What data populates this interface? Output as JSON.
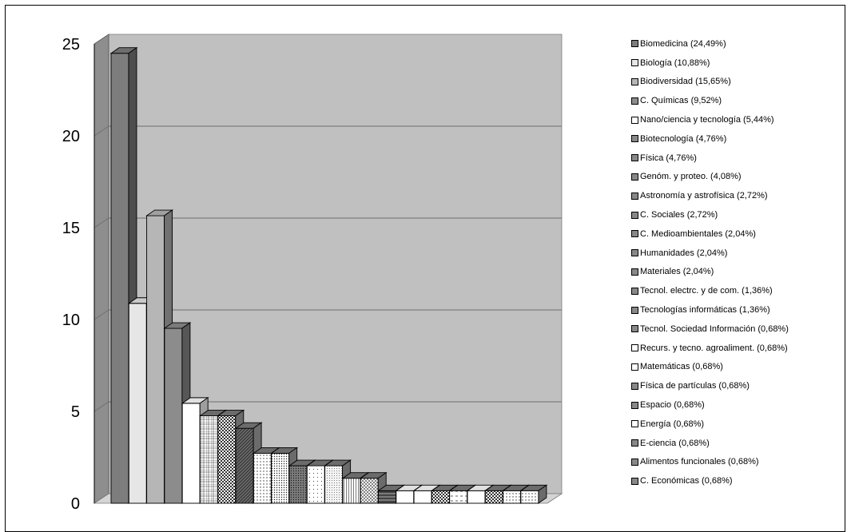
{
  "chart_data": {
    "type": "bar",
    "three_d": true,
    "ylim": [
      0,
      25
    ],
    "yticks": [
      "0",
      "5",
      "10",
      "15",
      "20",
      "25"
    ],
    "grid": true,
    "legend_position": "right",
    "title": "",
    "xlabel": "",
    "ylabel": "",
    "categories": [
      "Biomedicina (24,49%)",
      "Biología (10,88%)",
      "Biodiversidad (15,65%)",
      "C. Químicas (9,52%)",
      "Nano/ciencia y tecnología (5,44%)",
      "Biotecnología (4,76%)",
      "Física (4,76%)",
      "Genóm. y proteo. (4,08%)",
      "Astronomía y astrofísica (2,72%)",
      "C. Sociales (2,72%)",
      "C. Medioambientales (2,04%)",
      "Humanidades (2,04%)",
      "Materiales (2,04%)",
      "Tecnol. electrc. y de com. (1,36%)",
      "Tecnologías informáticas (1,36%)",
      "Tecnol. Sociedad Información (0,68%)",
      "Recurs. y tecno. agroaliment. (0,68%)",
      "Matemáticas (0,68%)",
      "Física de partículas (0,68%)",
      "Espacio (0,68%)",
      "Energía (0,68%)",
      "E-ciencia (0,68%)",
      "Alimentos funcionales (0,68%)",
      "C. Económicas (0,68%)"
    ],
    "values": [
      24.49,
      10.88,
      15.65,
      9.52,
      5.44,
      4.76,
      4.76,
      4.08,
      2.72,
      2.72,
      2.04,
      2.04,
      2.04,
      1.36,
      1.36,
      0.68,
      0.68,
      0.68,
      0.68,
      0.68,
      0.68,
      0.68,
      0.68,
      0.68
    ],
    "fills": [
      "dark-gray",
      "light-gray",
      "medium-gray",
      "medium-dark-gray",
      "white",
      "grid",
      "checker",
      "dark-hatch",
      "dots",
      "dense-dots",
      "dark-dots",
      "light-dots",
      "fine-dots",
      "vertical-lines",
      "diagonal-cross",
      "dark-stripes",
      "white",
      "white",
      "checker",
      "dashes",
      "white",
      "checker",
      "dots",
      "dots"
    ],
    "colors": {
      "plot_back": "#c0c0c0",
      "plot_side": "#8e8e8e",
      "floor": "#d4d4d4",
      "gridline": "#6e6e6e"
    }
  }
}
